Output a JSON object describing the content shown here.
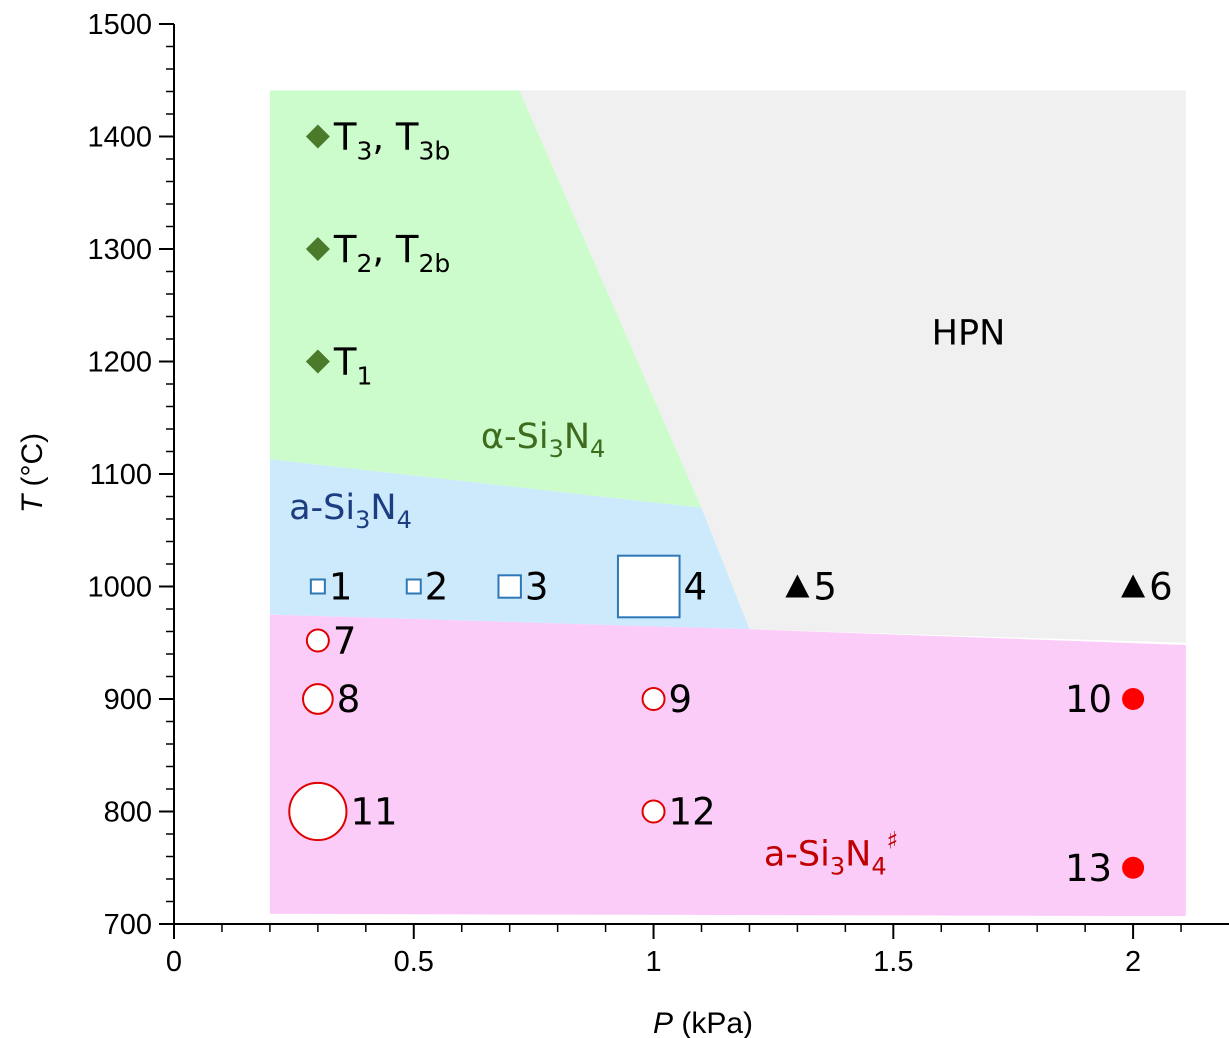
{
  "chart_data": {
    "type": "scatter",
    "xlabel_var": "P",
    "xlabel_unit": " (kPa)",
    "ylabel_var": "T",
    "ylabel_unit": " (°C)",
    "xlim": [
      0,
      2.2
    ],
    "ylim": [
      700,
      1500
    ],
    "x_ticks": [
      0,
      0.5,
      1,
      1.5,
      2
    ],
    "x_tick_labels": [
      "0",
      "0.5",
      "1",
      "1.5",
      "2"
    ],
    "y_ticks": [
      700,
      800,
      900,
      1000,
      1100,
      1200,
      1300,
      1400,
      1500
    ],
    "y_tick_labels": [
      "700",
      "800",
      "900",
      "1000",
      "1100",
      "1200",
      "1300",
      "1400",
      "1500"
    ],
    "regions": [
      {
        "id": "hpn",
        "color": "#f0f0f0",
        "polygon": [
          [
            0.72,
            1441
          ],
          [
            2.11,
            1441
          ],
          [
            2.11,
            950
          ],
          [
            1.2,
            962
          ],
          [
            1.1,
            1070
          ]
        ]
      },
      {
        "id": "alpha",
        "color": "#ccfccc",
        "polygon": [
          [
            0.2,
            1441
          ],
          [
            0.72,
            1441
          ],
          [
            1.1,
            1070
          ],
          [
            0.2,
            1113
          ]
        ]
      },
      {
        "id": "a-si3n4",
        "color": "#cceafc",
        "polygon": [
          [
            0.2,
            1113
          ],
          [
            1.1,
            1070
          ],
          [
            1.2,
            962
          ],
          [
            0.2,
            975
          ]
        ]
      },
      {
        "id": "a-si3n4-sharp",
        "color": "#fcccf8",
        "polygon": [
          [
            0.2,
            975
          ],
          [
            1.2,
            962
          ],
          [
            2.11,
            948
          ],
          [
            2.11,
            707
          ],
          [
            0.2,
            709
          ]
        ]
      }
    ],
    "region_labels": [
      {
        "id": "hpn",
        "base": "HPN",
        "sub1": "",
        "mid": "",
        "sub2": "",
        "sup": "",
        "x": 1.58,
        "y": 1215,
        "color": "#000000"
      },
      {
        "id": "alpha",
        "base": "α-Si",
        "sub1": "3",
        "mid": "N",
        "sub2": "4",
        "sup": "",
        "x": 0.64,
        "y": 1123,
        "color": "#3f6b1e"
      },
      {
        "id": "a-si3n4",
        "base": "a-Si",
        "sub1": "3",
        "mid": "N",
        "sub2": "4",
        "sup": "",
        "x": 0.24,
        "y": 1060,
        "color": "#1c3d80"
      },
      {
        "id": "a-si3n4-sharp",
        "base": "a-Si",
        "sub1": "3",
        "mid": "N",
        "sub2": "4",
        "sup": "♯",
        "x": 1.23,
        "y": 752,
        "color": "#c00000"
      }
    ],
    "series": [
      {
        "marker": "diamond",
        "color": "#4a7a2a",
        "points": [
          {
            "x": 0.3,
            "y": 1400,
            "label": "T",
            "sub1": "3",
            "mid": ", T",
            "sub2": "3b"
          },
          {
            "x": 0.3,
            "y": 1300,
            "label": "T",
            "sub1": "2",
            "mid": ", T",
            "sub2": "2b"
          },
          {
            "x": 0.3,
            "y": 1200,
            "label": "T",
            "sub1": "1",
            "mid": "",
            "sub2": ""
          }
        ]
      },
      {
        "marker": "square-open",
        "color": "#2e78b8",
        "points": [
          {
            "x": 0.3,
            "y": 1000,
            "label": "1",
            "size": 1
          },
          {
            "x": 0.5,
            "y": 1000,
            "label": "2",
            "size": 1
          },
          {
            "x": 0.7,
            "y": 1000,
            "label": "3",
            "size": 1.6
          },
          {
            "x": 0.99,
            "y": 1000,
            "label": "4",
            "size": 4.4
          }
        ]
      },
      {
        "marker": "triangle",
        "color": "#000000",
        "points": [
          {
            "x": 1.3,
            "y": 1000,
            "label": "5"
          },
          {
            "x": 2.0,
            "y": 1000,
            "label": "6"
          }
        ]
      },
      {
        "marker": "circle-open",
        "color": "#e00000",
        "points": [
          {
            "x": 0.3,
            "y": 952,
            "label": "7",
            "size": 1
          },
          {
            "x": 0.3,
            "y": 900,
            "label": "8",
            "size": 1.35
          },
          {
            "x": 1.0,
            "y": 900,
            "label": "9",
            "size": 1
          },
          {
            "x": 0.3,
            "y": 800,
            "label": "11",
            "size": 2.6
          },
          {
            "x": 1.0,
            "y": 800,
            "label": "12",
            "size": 1
          }
        ]
      },
      {
        "marker": "circle-filled",
        "color": "#ff0000",
        "points": [
          {
            "x": 2.0,
            "y": 900,
            "label": "10",
            "labelSide": "left"
          },
          {
            "x": 2.0,
            "y": 750,
            "label": "13",
            "labelSide": "left"
          }
        ]
      }
    ]
  }
}
